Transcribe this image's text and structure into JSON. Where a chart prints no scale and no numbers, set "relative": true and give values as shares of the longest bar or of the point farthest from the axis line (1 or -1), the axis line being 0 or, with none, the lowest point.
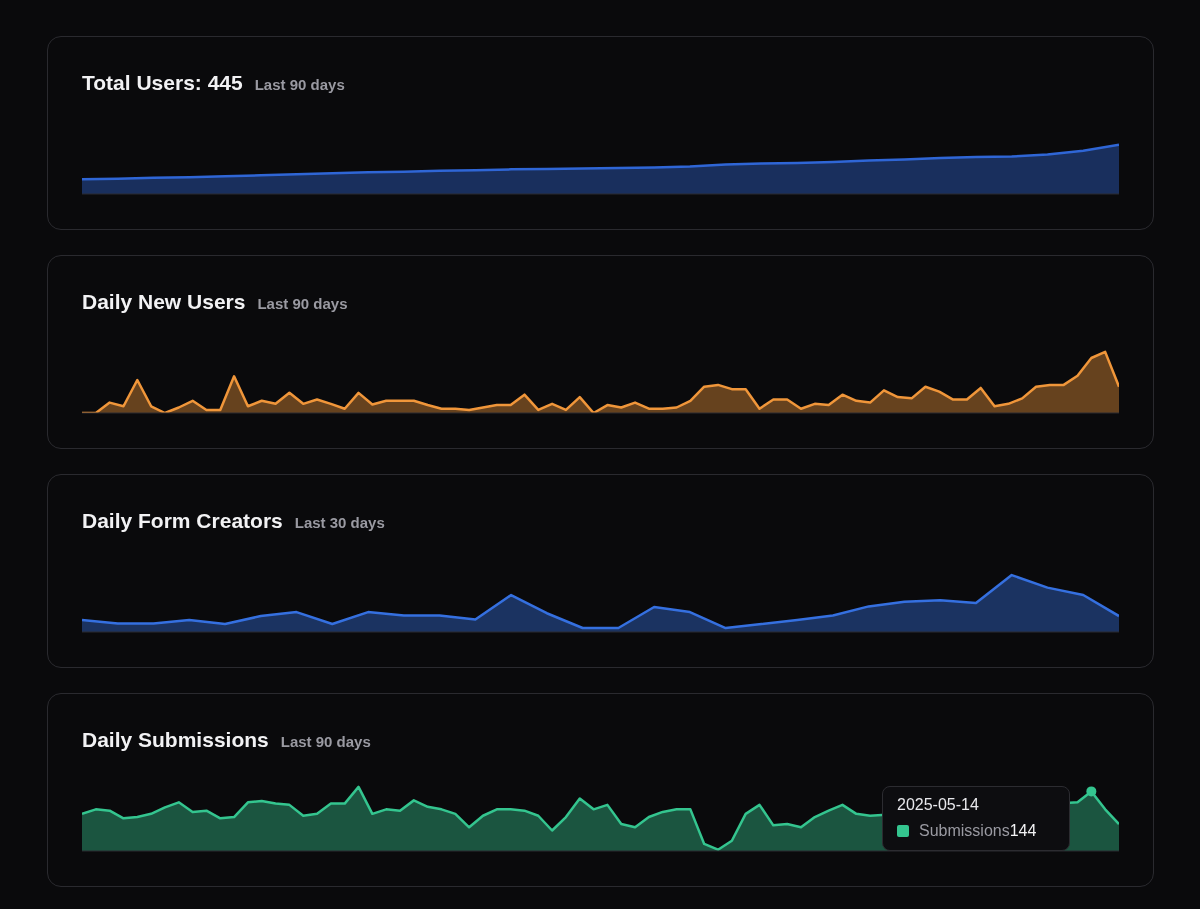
{
  "chart_data": [
    {
      "type": "area",
      "title": "Total Users: 445",
      "subtitle": "Last 90 days",
      "relative": true,
      "color": "#2f66d6",
      "categories": [
        null,
        null,
        null,
        null,
        null,
        null,
        null,
        null,
        null,
        null,
        null,
        null,
        null,
        null,
        null,
        null,
        null,
        null,
        null,
        null,
        null,
        null,
        null,
        null,
        null,
        null,
        null,
        null,
        null,
        null
      ],
      "values": [
        0.3,
        0.31,
        0.33,
        0.34,
        0.36,
        0.38,
        0.4,
        0.42,
        0.44,
        0.45,
        0.47,
        0.48,
        0.5,
        0.51,
        0.52,
        0.53,
        0.54,
        0.56,
        0.6,
        0.62,
        0.63,
        0.65,
        0.68,
        0.7,
        0.73,
        0.75,
        0.76,
        0.8,
        0.88,
        1.0
      ]
    },
    {
      "type": "area",
      "title": "Daily New Users",
      "subtitle": "Last 90 days",
      "relative": true,
      "color": "#f0963a",
      "categories": [
        null,
        null,
        null,
        null,
        null,
        null,
        null,
        null,
        null,
        null,
        null,
        null,
        null,
        null,
        null,
        null,
        null,
        null,
        null,
        null,
        null,
        null,
        null,
        null,
        null,
        null,
        null,
        null,
        null,
        null,
        null,
        null,
        null,
        null,
        null,
        null,
        null,
        null,
        null,
        null,
        null,
        null,
        null,
        null,
        null,
        null,
        null,
        null,
        null,
        null,
        null,
        null,
        null,
        null,
        null,
        null,
        null,
        null,
        null,
        null,
        null,
        null,
        null,
        null,
        null,
        null,
        null,
        null,
        null,
        null,
        null,
        null,
        null,
        null,
        null,
        null
      ],
      "values": [
        0,
        0,
        0.17,
        0.11,
        0.54,
        0.11,
        0,
        0.09,
        0.2,
        0.05,
        0.05,
        0.6,
        0.11,
        0.2,
        0.15,
        0.33,
        0.15,
        0.22,
        0.15,
        0.07,
        0.33,
        0.14,
        0.2,
        0.2,
        0.2,
        0.13,
        0.07,
        0.07,
        0.05,
        0.09,
        0.13,
        0.13,
        0.3,
        0.05,
        0.15,
        0.05,
        0.26,
        0,
        0.13,
        0.09,
        0.17,
        0.07,
        0.07,
        0.09,
        0.2,
        0.43,
        0.46,
        0.39,
        0.39,
        0.07,
        0.22,
        0.22,
        0.07,
        0.15,
        0.13,
        0.3,
        0.2,
        0.17,
        0.37,
        0.26,
        0.24,
        0.43,
        0.35,
        0.22,
        0.22,
        0.41,
        0.11,
        0.15,
        0.24,
        0.43,
        0.46,
        0.46,
        0.61,
        0.9,
        1.0,
        0.43
      ]
    },
    {
      "type": "area",
      "title": "Daily Form Creators",
      "subtitle": "Last 30 days",
      "relative": true,
      "color": "#3570e0",
      "categories": [
        null,
        null,
        null,
        null,
        null,
        null,
        null,
        null,
        null,
        null,
        null,
        null,
        null,
        null,
        null,
        null,
        null,
        null,
        null,
        null,
        null,
        null,
        null,
        null,
        null,
        null,
        null,
        null,
        null,
        null
      ],
      "values": [
        0.21,
        0.15,
        0.15,
        0.21,
        0.14,
        0.28,
        0.35,
        0.14,
        0.35,
        0.29,
        0.29,
        0.22,
        0.65,
        0.33,
        0.07,
        0.07,
        0.44,
        0.35,
        0.07,
        0.14,
        0.21,
        0.29,
        0.45,
        0.53,
        0.56,
        0.51,
        1.0,
        0.78,
        0.65,
        0.28
      ]
    },
    {
      "type": "area",
      "title": "Daily Submissions",
      "subtitle": "Last 90 days",
      "relative": true,
      "color": "#34c58f",
      "annotations": [
        "2025-05-14",
        "Submissions",
        "144"
      ],
      "categories": [
        null,
        null,
        null,
        null,
        null,
        null,
        null,
        null,
        null,
        null,
        null,
        null,
        null,
        null,
        null,
        null,
        null,
        null,
        null,
        null,
        null,
        null,
        null,
        null,
        null,
        null,
        null,
        null,
        null,
        null,
        null,
        null,
        null,
        null,
        null,
        null,
        null,
        null,
        null,
        null,
        null,
        null,
        null,
        null,
        null,
        null,
        null,
        null,
        null,
        null,
        null,
        null,
        null,
        null,
        null,
        null,
        null,
        null,
        null,
        null,
        null,
        null,
        null,
        null,
        null,
        null,
        null,
        null,
        null,
        null,
        null,
        null,
        null,
        null,
        null,
        null
      ],
      "values": [
        0.58,
        0.65,
        0.63,
        0.51,
        0.53,
        0.58,
        0.68,
        0.76,
        0.61,
        0.63,
        0.51,
        0.53,
        0.76,
        0.78,
        0.74,
        0.72,
        0.55,
        0.58,
        0.74,
        0.74,
        1.0,
        0.58,
        0.65,
        0.63,
        0.79,
        0.69,
        0.65,
        0.58,
        0.37,
        0.55,
        0.65,
        0.65,
        0.63,
        0.55,
        0.32,
        0.53,
        0.82,
        0.65,
        0.72,
        0.42,
        0.37,
        0.53,
        0.61,
        0.65,
        0.65,
        0.11,
        0.02,
        0.16,
        0.58,
        0.72,
        0.4,
        0.42,
        0.37,
        0.53,
        0.63,
        0.72,
        0.58,
        0.55,
        null,
        null,
        null,
        null,
        null,
        null,
        null,
        null,
        null,
        null,
        null,
        null,
        null,
        null,
        0.76,
        0.93,
        0.65,
        0.42
      ]
    }
  ]
}
